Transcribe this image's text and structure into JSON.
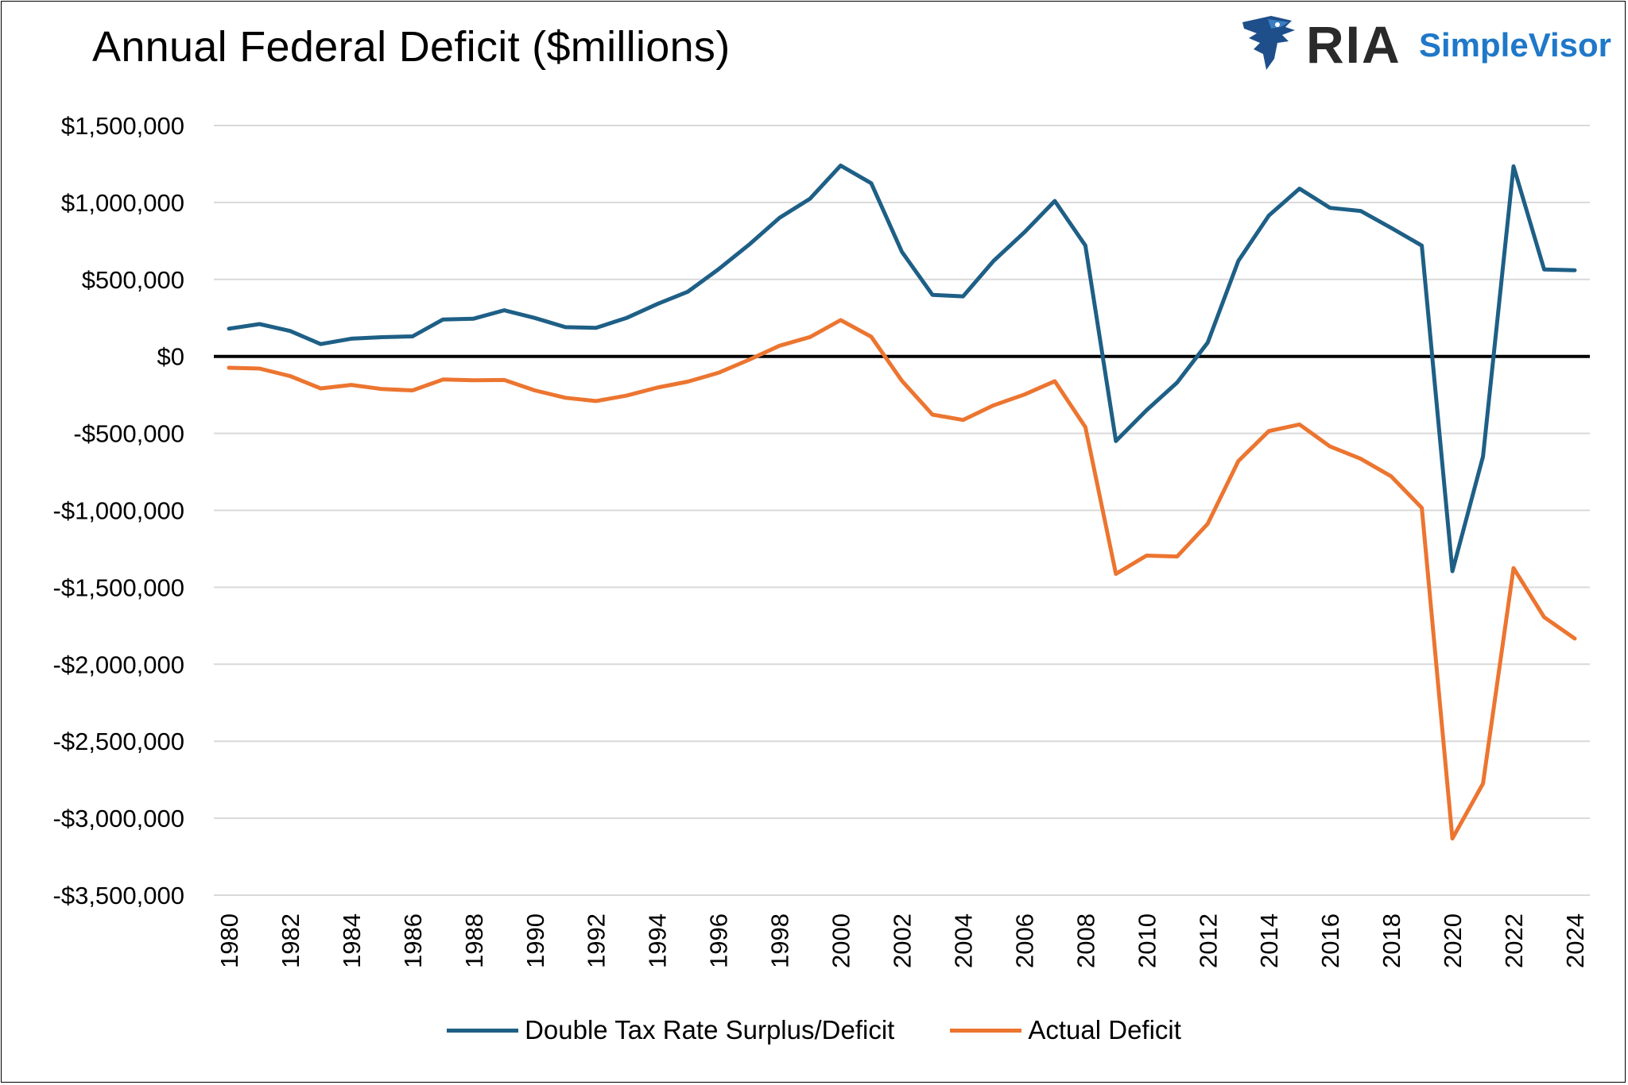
{
  "colors": {
    "double": "#1e5f86",
    "actual": "#ec7530",
    "zero": "#000000",
    "grid": "#d9d9d9"
  },
  "logo": {
    "brand": "RIA",
    "product": "SimpleVisor",
    "icon": "eagle-icon"
  },
  "chart_data": {
    "type": "line",
    "title": "Annual Federal Deficit ($millions)",
    "xlabel": "",
    "ylabel": "",
    "ylim": [
      -3500000,
      1500000
    ],
    "yticks": [
      1500000,
      1000000,
      500000,
      0,
      -500000,
      -1000000,
      -1500000,
      -2000000,
      -2500000,
      -3000000,
      -3500000
    ],
    "ytick_labels": [
      "$1,500,000",
      "$1,000,000",
      "$500,000",
      "$0",
      "-$500,000",
      "-$1,000,000",
      "-$1,500,000",
      "-$2,000,000",
      "-$2,500,000",
      "-$3,000,000",
      "-$3,500,000"
    ],
    "xtick_labels": [
      "1980",
      "1982",
      "1984",
      "1986",
      "1988",
      "1990",
      "1992",
      "1994",
      "1996",
      "1998",
      "2000",
      "2002",
      "2004",
      "2006",
      "2008",
      "2010",
      "2012",
      "2014",
      "2016",
      "2018",
      "2020",
      "2022",
      "2024"
    ],
    "x": [
      1980,
      1981,
      1982,
      1983,
      1984,
      1985,
      1986,
      1987,
      1988,
      1989,
      1990,
      1991,
      1992,
      1993,
      1994,
      1995,
      1996,
      1997,
      1998,
      1999,
      2000,
      2001,
      2002,
      2003,
      2004,
      2005,
      2006,
      2007,
      2008,
      2009,
      2010,
      2011,
      2012,
      2013,
      2014,
      2015,
      2016,
      2017,
      2018,
      2019,
      2020,
      2021,
      2022,
      2023,
      2024
    ],
    "legend_position": "bottom",
    "grid": true,
    "series": [
      {
        "name": "Double Tax Rate Surplus/Deficit",
        "color_key": "double",
        "values": [
          180000,
          210000,
          165000,
          80000,
          115000,
          125000,
          130000,
          240000,
          245000,
          300000,
          250000,
          190000,
          185000,
          250000,
          340000,
          420000,
          565000,
          725000,
          900000,
          1025000,
          1240000,
          1125000,
          680000,
          400000,
          390000,
          620000,
          805000,
          1010000,
          720000,
          -550000,
          -350000,
          -170000,
          90000,
          620000,
          915000,
          1090000,
          965000,
          945000,
          835000,
          720000,
          -1395000,
          -650000,
          1235000,
          565000,
          560000
        ]
      },
      {
        "name": "Actual Deficit",
        "color_key": "actual",
        "values": [
          -74000,
          -79000,
          -128000,
          -208000,
          -185000,
          -212000,
          -221000,
          -150000,
          -155000,
          -153000,
          -221000,
          -269000,
          -290000,
          -255000,
          -203000,
          -164000,
          -107000,
          -22000,
          69000,
          126000,
          236000,
          128000,
          -158000,
          -378000,
          -413000,
          -318000,
          -248000,
          -161000,
          -459000,
          -1413000,
          -1294000,
          -1300000,
          -1087000,
          -680000,
          -485000,
          -442000,
          -585000,
          -665000,
          -779000,
          -984000,
          -3132000,
          -2775000,
          -1375000,
          -1694000,
          -1833000
        ]
      }
    ]
  }
}
